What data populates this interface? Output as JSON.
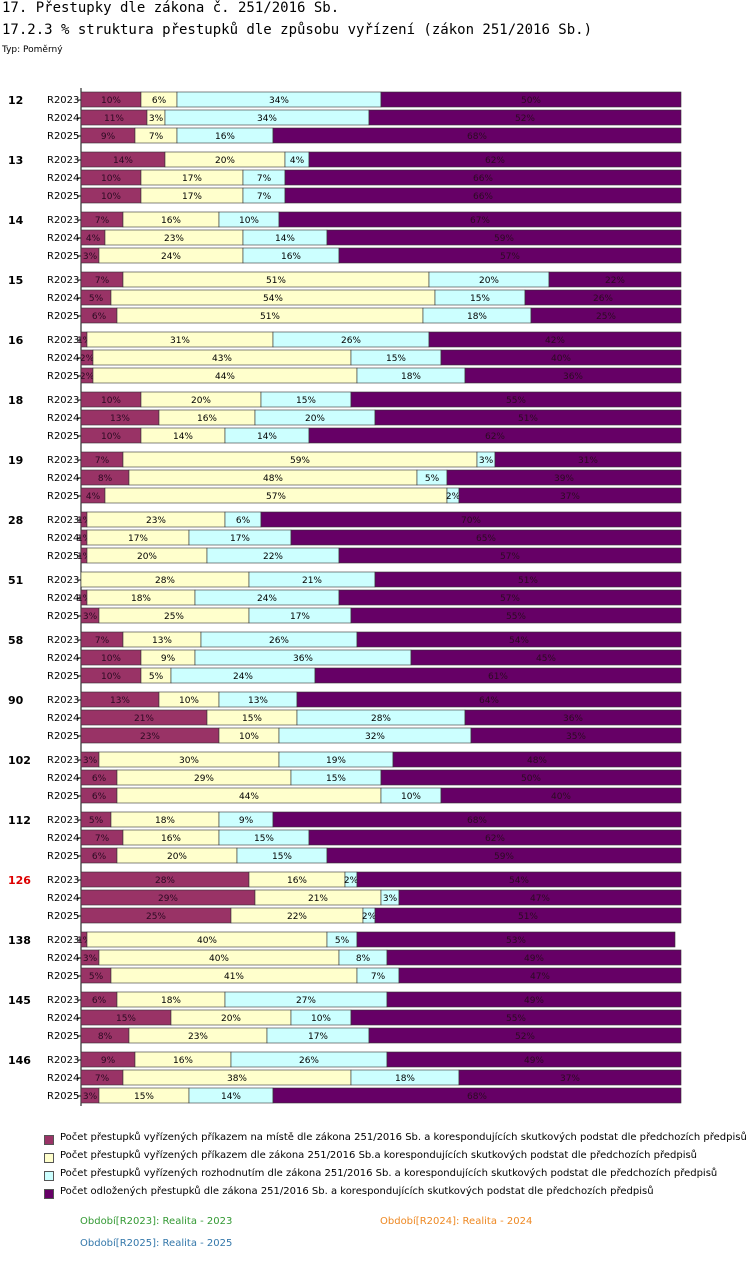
{
  "header": {
    "title": "17. Přestupky dle zákona č. 251/2016 Sb.",
    "subtitle": "17.2.3 % struktura přestupků dle způsobu vyřízení (zákon 251/2016 Sb.)",
    "type_label": "Typ: Poměrný"
  },
  "colors": {
    "series": [
      "#993366",
      "#ffffcc",
      "#ccffff",
      "#660066"
    ],
    "highlight_category": "#dd0000",
    "period_2023": "#339933",
    "period_2024": "#ee8822",
    "period_2025": "#3377aa"
  },
  "legend": [
    "Počet přestupků vyřízených příkazem na místě dle zákona 251/2016 Sb. a korespondujících skutkových podstat dle předchozích předpisů",
    "Počet přestupků vyřízených příkazem dle zákona 251/2016 Sb.a korespondujících skutkových podstat dle předchozích předpisů",
    "Počet přestupků vyřízených rozhodnutím dle zákona 251/2016 Sb. a korespondujících skutkových podstat dle předchozích předpisů",
    "Počet odložených přestupků dle zákona 251/2016 Sb. a korespondujících skutkových podstat dle předchozích předpisů"
  ],
  "periods": {
    "p2023": "Období[R2023]: Realita - 2023",
    "p2024": "Období[R2024]: Realita - 2024",
    "p2025": "Období[R2025]: Realita - 2025"
  },
  "chart_data": {
    "type": "bar",
    "orientation": "horizontal",
    "stacked": "100%",
    "title": "17.2.3 % struktura přestupků dle způsobu vyřízení (zákon 251/2016 Sb.)",
    "row_labels": [
      "R2023",
      "R2024",
      "R2025"
    ],
    "series_names": [
      "Počet přestupků vyřízených příkazem na místě dle zákona 251/2016 Sb. a korespondujících skutkových podstat dle předchozích předpisů",
      "Počet přestupků vyřízených příkazem dle zákona 251/2016 Sb.a korespondujících skutkových podstat dle předchozích předpisů",
      "Počet přestupků vyřízených rozhodnutím dle zákona 251/2016 Sb. a korespondujících skutkových podstat dle předchozích předpisů",
      "Počet odložených přestupků dle zákona 251/2016 Sb. a korespondujících skutkových podstat dle předchozích předpisů"
    ],
    "highlight_category": "126",
    "xlim": [
      0,
      100
    ],
    "groups": [
      {
        "category": "12",
        "rows": [
          [
            10,
            6,
            34,
            50
          ],
          [
            11,
            3,
            34,
            52
          ],
          [
            9,
            7,
            16,
            68
          ]
        ]
      },
      {
        "category": "13",
        "rows": [
          [
            14,
            20,
            4,
            62
          ],
          [
            10,
            17,
            7,
            66
          ],
          [
            10,
            17,
            7,
            66
          ]
        ]
      },
      {
        "category": "14",
        "rows": [
          [
            7,
            16,
            10,
            67
          ],
          [
            4,
            23,
            14,
            59
          ],
          [
            3,
            24,
            16,
            57
          ]
        ]
      },
      {
        "category": "15",
        "rows": [
          [
            7,
            51,
            20,
            22
          ],
          [
            5,
            54,
            15,
            26
          ],
          [
            6,
            51,
            18,
            25
          ]
        ]
      },
      {
        "category": "16",
        "rows": [
          [
            1,
            31,
            26,
            42
          ],
          [
            2,
            43,
            15,
            40
          ],
          [
            2,
            44,
            18,
            36
          ]
        ]
      },
      {
        "category": "18",
        "rows": [
          [
            10,
            20,
            15,
            55
          ],
          [
            13,
            16,
            20,
            51
          ],
          [
            10,
            14,
            14,
            62
          ]
        ]
      },
      {
        "category": "19",
        "rows": [
          [
            7,
            59,
            3,
            31
          ],
          [
            8,
            48,
            5,
            39
          ],
          [
            4,
            57,
            2,
            37
          ]
        ]
      },
      {
        "category": "28",
        "rows": [
          [
            1,
            23,
            6,
            70
          ],
          [
            1,
            17,
            17,
            65
          ],
          [
            1,
            20,
            22,
            57
          ]
        ]
      },
      {
        "category": "51",
        "rows": [
          [
            0,
            28,
            21,
            51
          ],
          [
            1,
            18,
            24,
            57
          ],
          [
            3,
            25,
            17,
            55
          ]
        ]
      },
      {
        "category": "58",
        "rows": [
          [
            7,
            13,
            26,
            54
          ],
          [
            10,
            9,
            36,
            45
          ],
          [
            10,
            5,
            24,
            61
          ]
        ]
      },
      {
        "category": "90",
        "rows": [
          [
            13,
            10,
            13,
            64
          ],
          [
            21,
            15,
            28,
            36
          ],
          [
            23,
            10,
            32,
            35
          ]
        ]
      },
      {
        "category": "102",
        "rows": [
          [
            3,
            30,
            19,
            48
          ],
          [
            6,
            29,
            15,
            50
          ],
          [
            6,
            44,
            10,
            40
          ]
        ]
      },
      {
        "category": "112",
        "rows": [
          [
            5,
            18,
            9,
            68
          ],
          [
            7,
            16,
            15,
            62
          ],
          [
            6,
            20,
            15,
            59
          ]
        ]
      },
      {
        "category": "126",
        "rows": [
          [
            28,
            16,
            2,
            54
          ],
          [
            29,
            21,
            3,
            47
          ],
          [
            25,
            22,
            2,
            51
          ]
        ]
      },
      {
        "category": "138",
        "rows": [
          [
            1,
            40,
            5,
            53
          ],
          [
            3,
            40,
            8,
            49
          ],
          [
            5,
            41,
            7,
            47
          ]
        ]
      },
      {
        "category": "145",
        "rows": [
          [
            6,
            18,
            27,
            49
          ],
          [
            15,
            20,
            10,
            55
          ],
          [
            8,
            23,
            17,
            52
          ]
        ]
      },
      {
        "category": "146",
        "rows": [
          [
            9,
            16,
            26,
            49
          ],
          [
            7,
            38,
            18,
            37
          ],
          [
            3,
            15,
            14,
            68
          ]
        ]
      }
    ]
  }
}
